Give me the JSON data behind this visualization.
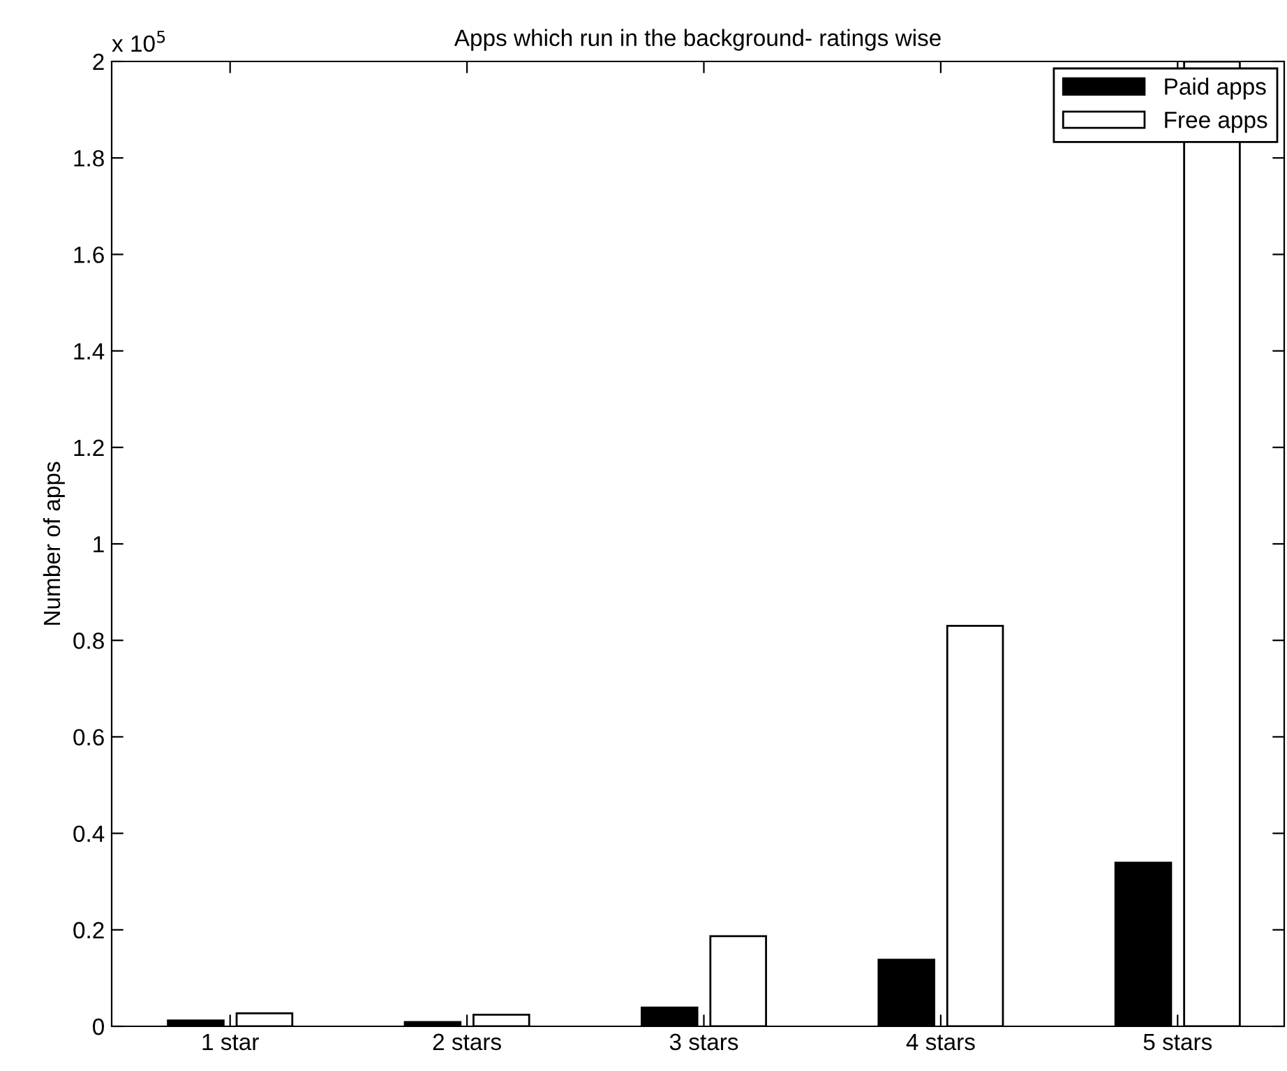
{
  "chart_data": {
    "type": "bar",
    "title": "Apps which run in the background- ratings wise",
    "ylabel": "Number of apps",
    "categories": [
      "1 star",
      "2 stars",
      "3 stars",
      "4 stars",
      "5 stars"
    ],
    "series": [
      {
        "name": "Paid apps",
        "color": "#000000",
        "values": [
          0.012,
          0.009,
          0.039,
          0.138,
          0.339
        ]
      },
      {
        "name": "Free apps",
        "color": "#ffffff",
        "values": [
          0.027,
          0.024,
          0.187,
          0.83,
          2
        ]
      }
    ],
    "ylim": [
      0,
      2
    ],
    "yticks": [
      0,
      0.2,
      0.4,
      0.6,
      0.8,
      1,
      1.2,
      1.4,
      1.6,
      1.8,
      2
    ],
    "annotations": [
      "x 10$^{5}$"
    ],
    "legend": "top right",
    "grid": false
  }
}
